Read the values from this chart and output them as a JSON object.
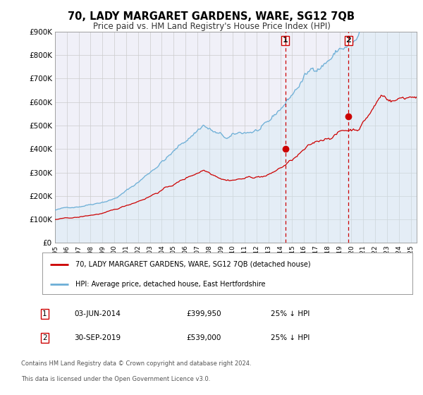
{
  "title": "70, LADY MARGARET GARDENS, WARE, SG12 7QB",
  "subtitle": "Price paid vs. HM Land Registry's House Price Index (HPI)",
  "ylim": [
    0,
    900000
  ],
  "xlim_start": 1995.0,
  "xlim_end": 2025.5,
  "yticks": [
    0,
    100000,
    200000,
    300000,
    400000,
    500000,
    600000,
    700000,
    800000,
    900000
  ],
  "ytick_labels": [
    "£0",
    "£100K",
    "£200K",
    "£300K",
    "£400K",
    "£500K",
    "£600K",
    "£700K",
    "£800K",
    "£900K"
  ],
  "xticks": [
    1995,
    1996,
    1997,
    1998,
    1999,
    2000,
    2001,
    2002,
    2003,
    2004,
    2005,
    2006,
    2007,
    2008,
    2009,
    2010,
    2011,
    2012,
    2013,
    2014,
    2015,
    2016,
    2017,
    2018,
    2019,
    2020,
    2021,
    2022,
    2023,
    2024,
    2025
  ],
  "hpi_color": "#6baed6",
  "hpi_fill_color": "#d0e8f5",
  "price_color": "#cc0000",
  "marker_color": "#cc0000",
  "vline_color": "#cc0000",
  "grid_color": "#cccccc",
  "background_color": "#f0f0f8",
  "sale1_x": 2014.42,
  "sale1_y": 399950,
  "sale2_x": 2019.75,
  "sale2_y": 539000,
  "sale1_date": "03-JUN-2014",
  "sale1_price": "£399,950",
  "sale1_note": "25% ↓ HPI",
  "sale2_date": "30-SEP-2019",
  "sale2_price": "£539,000",
  "sale2_note": "25% ↓ HPI",
  "legend_line1": "70, LADY MARGARET GARDENS, WARE, SG12 7QB (detached house)",
  "legend_line2": "HPI: Average price, detached house, East Hertfordshire",
  "footer1": "Contains HM Land Registry data © Crown copyright and database right 2024.",
  "footer2": "This data is licensed under the Open Government Licence v3.0."
}
